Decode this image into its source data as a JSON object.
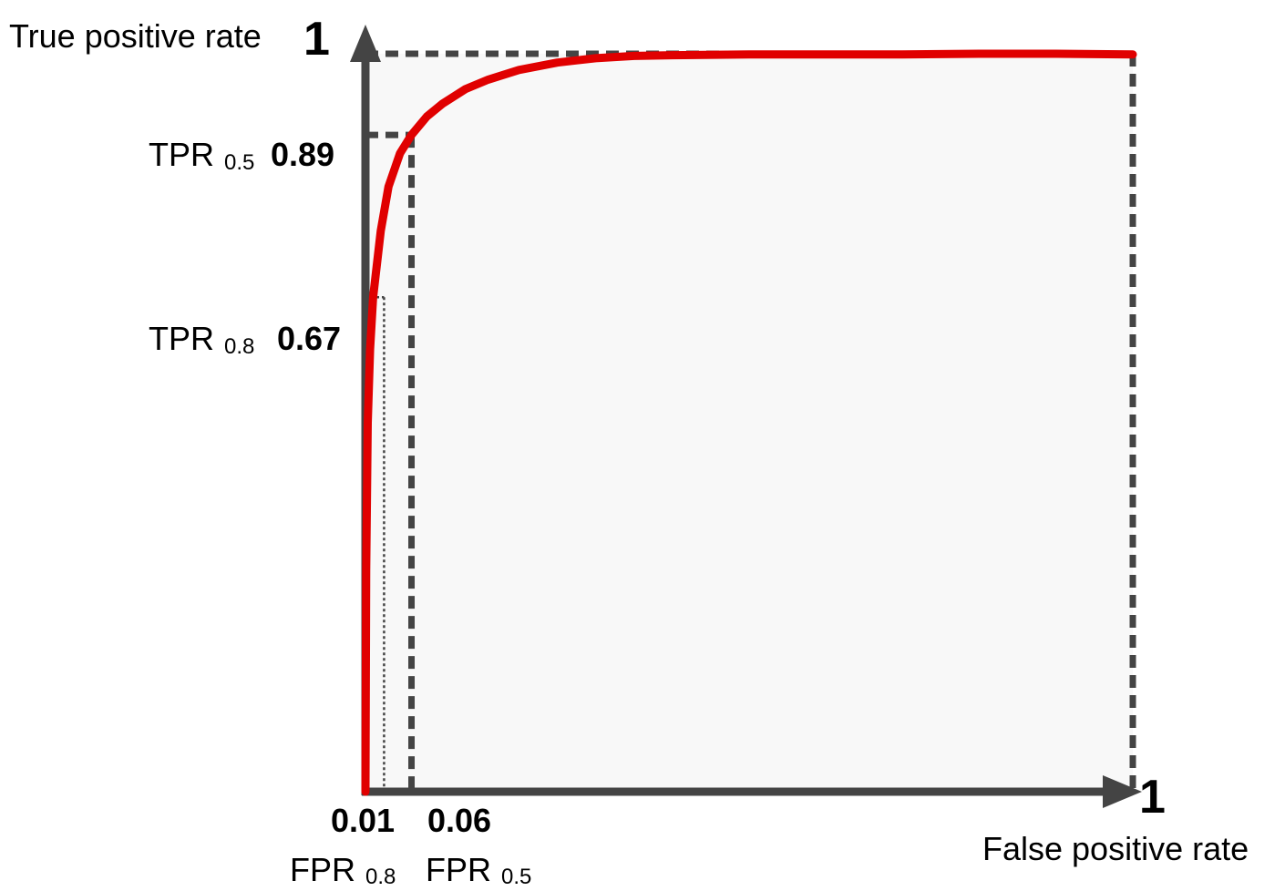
{
  "chart_data": {
    "type": "line",
    "title": "",
    "xlabel": "False positive rate",
    "ylabel": "True positive rate",
    "xlim": [
      0,
      1
    ],
    "ylim": [
      0,
      1
    ],
    "x_max_label": "1",
    "y_max_label": "1",
    "grid": false,
    "series": [
      {
        "x": [
          0,
          0.001,
          0.003,
          0.006,
          0.01,
          0.02,
          0.03,
          0.045,
          0.06,
          0.08,
          0.1,
          0.13,
          0.16,
          0.2,
          0.25,
          0.3,
          0.35,
          0.4,
          0.5,
          0.6,
          0.7,
          0.8,
          0.9,
          1.0
        ],
        "y": [
          0,
          0.3,
          0.5,
          0.6,
          0.67,
          0.76,
          0.82,
          0.865,
          0.89,
          0.915,
          0.932,
          0.952,
          0.965,
          0.978,
          0.988,
          0.994,
          0.997,
          0.998,
          0.999,
          0.999,
          0.999,
          1.0,
          1.0,
          0.999
        ],
        "color": "#e00000"
      }
    ],
    "annotations": [
      {
        "axis": "y",
        "label": "TPR",
        "subscript": "0.5",
        "value": 0.89,
        "value_label": "0.89",
        "partner_x": 0.06
      },
      {
        "axis": "y",
        "label": "TPR",
        "subscript": "0.8",
        "value": 0.67,
        "value_label": "0.67",
        "partner_x": 0.01
      },
      {
        "axis": "x",
        "label": "FPR",
        "subscript": "0.8",
        "value": 0.01,
        "value_label": "0.01",
        "partner_y": 0.67
      },
      {
        "axis": "x",
        "label": "FPR",
        "subscript": "0.5",
        "value": 0.06,
        "value_label": "0.06",
        "partner_y": 0.89
      }
    ],
    "colors": {
      "curve": "#e00000",
      "axes": "#444444",
      "guides": "#444444",
      "plot_background": "#f8f8f8"
    }
  }
}
